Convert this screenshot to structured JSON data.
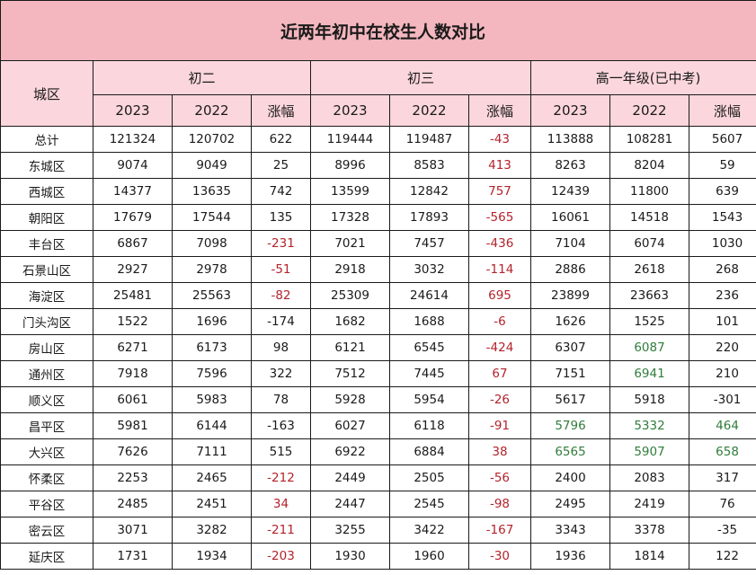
{
  "title": "近两年初中在校生人数对比",
  "headers": {
    "district": "城区",
    "groups": [
      "初二",
      "初三",
      "高一年级(已中考)"
    ],
    "subcols": [
      "2023",
      "2022",
      "涨幅"
    ]
  },
  "rows": [
    {
      "district": "总计",
      "cells": [
        {
          "v": "121324"
        },
        {
          "v": "120702"
        },
        {
          "v": "622"
        },
        {
          "v": "119444"
        },
        {
          "v": "119487"
        },
        {
          "v": "-43",
          "c": "red"
        },
        {
          "v": "113888"
        },
        {
          "v": "108281"
        },
        {
          "v": "5607"
        }
      ]
    },
    {
      "district": "东城区",
      "cells": [
        {
          "v": "9074"
        },
        {
          "v": "9049"
        },
        {
          "v": "25"
        },
        {
          "v": "8996"
        },
        {
          "v": "8583"
        },
        {
          "v": "413",
          "c": "red"
        },
        {
          "v": "8263"
        },
        {
          "v": "8204"
        },
        {
          "v": "59"
        }
      ]
    },
    {
      "district": "西城区",
      "cells": [
        {
          "v": "14377"
        },
        {
          "v": "13635"
        },
        {
          "v": "742"
        },
        {
          "v": "13599"
        },
        {
          "v": "12842"
        },
        {
          "v": "757",
          "c": "red"
        },
        {
          "v": "12439"
        },
        {
          "v": "11800"
        },
        {
          "v": "639"
        }
      ]
    },
    {
      "district": "朝阳区",
      "cells": [
        {
          "v": "17679"
        },
        {
          "v": "17544"
        },
        {
          "v": "135"
        },
        {
          "v": "17328"
        },
        {
          "v": "17893"
        },
        {
          "v": "-565",
          "c": "red"
        },
        {
          "v": "16061"
        },
        {
          "v": "14518"
        },
        {
          "v": "1543"
        }
      ]
    },
    {
      "district": "丰台区",
      "cells": [
        {
          "v": "6867"
        },
        {
          "v": "7098"
        },
        {
          "v": "-231",
          "c": "red"
        },
        {
          "v": "7021"
        },
        {
          "v": "7457"
        },
        {
          "v": "-436",
          "c": "red"
        },
        {
          "v": "7104"
        },
        {
          "v": "6074"
        },
        {
          "v": "1030"
        }
      ]
    },
    {
      "district": "石景山区",
      "cells": [
        {
          "v": "2927"
        },
        {
          "v": "2978"
        },
        {
          "v": "-51",
          "c": "red"
        },
        {
          "v": "2918"
        },
        {
          "v": "3032"
        },
        {
          "v": "-114",
          "c": "red"
        },
        {
          "v": "2886"
        },
        {
          "v": "2618"
        },
        {
          "v": "268"
        }
      ]
    },
    {
      "district": "海淀区",
      "cells": [
        {
          "v": "25481"
        },
        {
          "v": "25563"
        },
        {
          "v": "-82",
          "c": "red"
        },
        {
          "v": "25309"
        },
        {
          "v": "24614"
        },
        {
          "v": "695",
          "c": "red"
        },
        {
          "v": "23899"
        },
        {
          "v": "23663"
        },
        {
          "v": "236"
        }
      ]
    },
    {
      "district": "门头沟区",
      "cells": [
        {
          "v": "1522"
        },
        {
          "v": "1696"
        },
        {
          "v": "-174"
        },
        {
          "v": "1682"
        },
        {
          "v": "1688"
        },
        {
          "v": "-6",
          "c": "red"
        },
        {
          "v": "1626"
        },
        {
          "v": "1525"
        },
        {
          "v": "101"
        }
      ]
    },
    {
      "district": "房山区",
      "cells": [
        {
          "v": "6271"
        },
        {
          "v": "6173"
        },
        {
          "v": "98"
        },
        {
          "v": "6121"
        },
        {
          "v": "6545"
        },
        {
          "v": "-424",
          "c": "red"
        },
        {
          "v": "6307"
        },
        {
          "v": "6087",
          "c": "green"
        },
        {
          "v": "220"
        }
      ]
    },
    {
      "district": "通州区",
      "cells": [
        {
          "v": "7918"
        },
        {
          "v": "7596"
        },
        {
          "v": "322"
        },
        {
          "v": "7512"
        },
        {
          "v": "7445"
        },
        {
          "v": "67",
          "c": "red"
        },
        {
          "v": "7151"
        },
        {
          "v": "6941",
          "c": "green"
        },
        {
          "v": "210"
        }
      ]
    },
    {
      "district": "顺义区",
      "cells": [
        {
          "v": "6061"
        },
        {
          "v": "5983"
        },
        {
          "v": "78"
        },
        {
          "v": "5928"
        },
        {
          "v": "5954"
        },
        {
          "v": "-26",
          "c": "red"
        },
        {
          "v": "5617"
        },
        {
          "v": "5918"
        },
        {
          "v": "-301"
        }
      ]
    },
    {
      "district": "昌平区",
      "cells": [
        {
          "v": "5981"
        },
        {
          "v": "6144"
        },
        {
          "v": "-163"
        },
        {
          "v": "6027"
        },
        {
          "v": "6118"
        },
        {
          "v": "-91",
          "c": "red"
        },
        {
          "v": "5796",
          "c": "green"
        },
        {
          "v": "5332",
          "c": "green"
        },
        {
          "v": "464",
          "c": "green"
        }
      ]
    },
    {
      "district": "大兴区",
      "cells": [
        {
          "v": "7626"
        },
        {
          "v": "7111"
        },
        {
          "v": "515"
        },
        {
          "v": "6922"
        },
        {
          "v": "6884"
        },
        {
          "v": "38",
          "c": "red"
        },
        {
          "v": "6565",
          "c": "green"
        },
        {
          "v": "5907",
          "c": "green"
        },
        {
          "v": "658",
          "c": "green"
        }
      ]
    },
    {
      "district": "怀柔区",
      "cells": [
        {
          "v": "2253"
        },
        {
          "v": "2465"
        },
        {
          "v": "-212",
          "c": "red"
        },
        {
          "v": "2449"
        },
        {
          "v": "2505"
        },
        {
          "v": "-56",
          "c": "red"
        },
        {
          "v": "2400"
        },
        {
          "v": "2083"
        },
        {
          "v": "317"
        }
      ]
    },
    {
      "district": "平谷区",
      "cells": [
        {
          "v": "2485"
        },
        {
          "v": "2451"
        },
        {
          "v": "34",
          "c": "red"
        },
        {
          "v": "2447"
        },
        {
          "v": "2545"
        },
        {
          "v": "-98",
          "c": "red"
        },
        {
          "v": "2495"
        },
        {
          "v": "2419"
        },
        {
          "v": "76"
        }
      ]
    },
    {
      "district": "密云区",
      "cells": [
        {
          "v": "3071"
        },
        {
          "v": "3282"
        },
        {
          "v": "-211",
          "c": "red"
        },
        {
          "v": "3255"
        },
        {
          "v": "3422"
        },
        {
          "v": "-167",
          "c": "red"
        },
        {
          "v": "3343"
        },
        {
          "v": "3378"
        },
        {
          "v": "-35"
        }
      ]
    },
    {
      "district": "延庆区",
      "cells": [
        {
          "v": "1731"
        },
        {
          "v": "1934"
        },
        {
          "v": "-203",
          "c": "red"
        },
        {
          "v": "1930"
        },
        {
          "v": "1960"
        },
        {
          "v": "-30",
          "c": "red"
        },
        {
          "v": "1936"
        },
        {
          "v": "1814"
        },
        {
          "v": "122"
        }
      ]
    }
  ],
  "colors": {
    "title_bg": "#f4b7bf",
    "header_bg": "#fbd6dc",
    "red_text": "#b3232b",
    "green_text": "#2f7d3a",
    "border": "#1a1a1a"
  }
}
